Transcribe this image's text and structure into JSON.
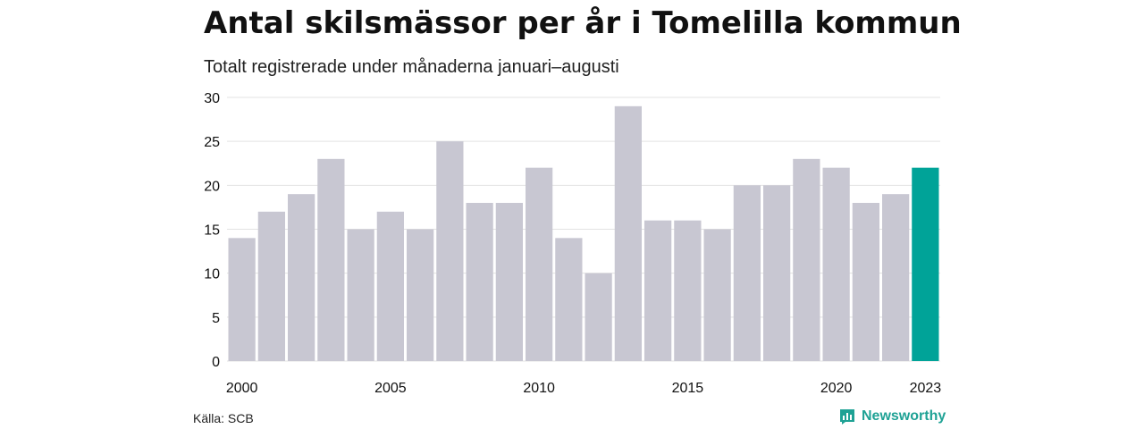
{
  "title": "Antal skilsmässor per år i Tomelilla kommun",
  "subtitle": "Totalt registrerade under månaderna januari–augusti",
  "source": "Källa: SCB",
  "brand": "Newsworthy",
  "colors": {
    "bar": "#c8c7d2",
    "highlight": "#00a398",
    "grid": "#e3e3e3",
    "brand": "#1fa295"
  },
  "chart_data": {
    "type": "bar",
    "x": [
      2000,
      2001,
      2002,
      2003,
      2004,
      2005,
      2006,
      2007,
      2008,
      2009,
      2010,
      2011,
      2012,
      2013,
      2014,
      2015,
      2016,
      2017,
      2018,
      2019,
      2020,
      2021,
      2022,
      2023
    ],
    "values": [
      14,
      17,
      19,
      23,
      15,
      17,
      15,
      25,
      18,
      18,
      22,
      14,
      10,
      29,
      16,
      16,
      15,
      20,
      20,
      23,
      22,
      18,
      19,
      22
    ],
    "highlight": 2023,
    "x_tick_labels": [
      "2000",
      "2005",
      "2010",
      "2015",
      "2020",
      "2023"
    ],
    "y_ticks": [
      0,
      5,
      10,
      15,
      20,
      25,
      30
    ],
    "ylim": [
      0,
      30
    ],
    "grid": true
  }
}
